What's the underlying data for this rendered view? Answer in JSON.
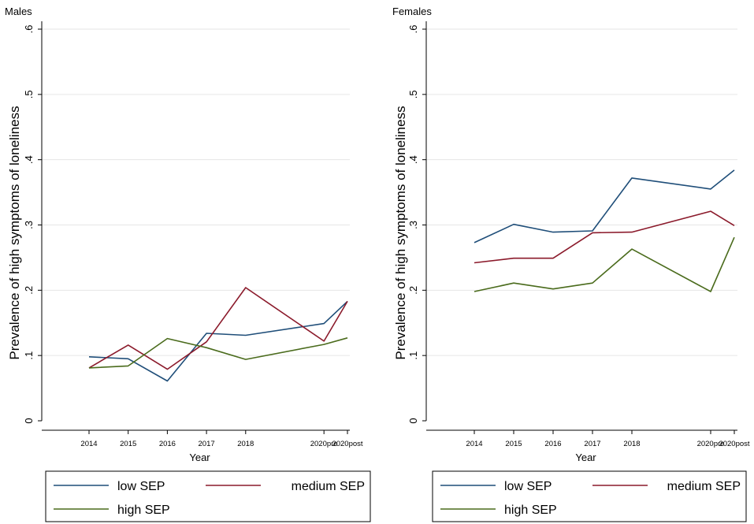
{
  "chart_data": [
    {
      "type": "line",
      "title": "Males",
      "xlabel": "Year",
      "ylabel": "Prevalence of high symptoms of loneliness",
      "categories": [
        "2014",
        "2015",
        "2016",
        "2017",
        "2018",
        "2020pre",
        "2020post"
      ],
      "x": [
        2014,
        2015,
        2016,
        2017,
        2018,
        2020,
        2020.6
      ],
      "ylim": [
        0,
        0.6
      ],
      "yticks": [
        0,
        0.1,
        0.2,
        0.3,
        0.4,
        0.5,
        0.6
      ],
      "ytick_labels": [
        "0",
        ".1",
        ".2",
        ".3",
        ".4",
        ".5",
        ".6"
      ],
      "grid": true,
      "series": [
        {
          "name": "low SEP",
          "values": [
            0.098,
            0.095,
            0.061,
            0.134,
            0.131,
            0.149,
            0.183
          ]
        },
        {
          "name": "medium SEP",
          "values": [
            0.081,
            0.116,
            0.079,
            0.121,
            0.204,
            0.122,
            0.183
          ]
        },
        {
          "name": "high SEP",
          "values": [
            0.081,
            0.084,
            0.126,
            0.112,
            0.094,
            0.117,
            0.127
          ]
        }
      ]
    },
    {
      "type": "line",
      "title": "Females",
      "xlabel": "Year",
      "ylabel": "Prevalence of high symptoms of loneliness",
      "categories": [
        "2014",
        "2015",
        "2016",
        "2017",
        "2018",
        "2020pre",
        "2020post"
      ],
      "x": [
        2014,
        2015,
        2016,
        2017,
        2018,
        2020,
        2020.6
      ],
      "ylim": [
        0,
        0.6
      ],
      "yticks": [
        0,
        0.1,
        0.2,
        0.3,
        0.4,
        0.5,
        0.6
      ],
      "ytick_labels": [
        "0",
        ".1",
        ".2",
        ".3",
        ".4",
        ".5",
        ".6"
      ],
      "grid": true,
      "series": [
        {
          "name": "low SEP",
          "values": [
            0.273,
            0.301,
            0.289,
            0.291,
            0.372,
            0.355,
            0.384
          ]
        },
        {
          "name": "medium SEP",
          "values": [
            0.242,
            0.249,
            0.249,
            0.288,
            0.289,
            0.321,
            0.299
          ]
        },
        {
          "name": "high SEP",
          "values": [
            0.198,
            0.211,
            0.202,
            0.211,
            0.263,
            0.198,
            0.281
          ]
        }
      ]
    }
  ],
  "colors": {
    "low SEP": "#1f4e79",
    "medium SEP": "#8b1a2b",
    "high SEP": "#4a6b1c",
    "grid": "#e6e6e6",
    "axis": "#000000"
  }
}
